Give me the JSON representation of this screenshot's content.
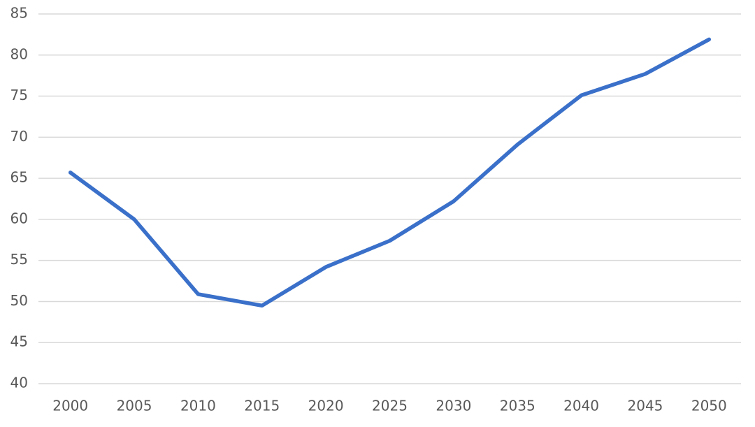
{
  "chart_data": {
    "type": "line",
    "categories": [
      "2000",
      "2005",
      "2010",
      "2015",
      "2020",
      "2025",
      "2030",
      "2035",
      "2040",
      "2045",
      "2050"
    ],
    "series": [
      {
        "color": "#3a70c9",
        "values": [
          65.7,
          60,
          50.9,
          49.5,
          54.2,
          57.4,
          62.2,
          69.1,
          75.1,
          77.7,
          81.9
        ]
      }
    ],
    "ylim": [
      40,
      85
    ],
    "yticks": [
      40,
      45,
      50,
      55,
      60,
      65,
      70,
      75,
      80,
      85
    ],
    "grid": true
  }
}
